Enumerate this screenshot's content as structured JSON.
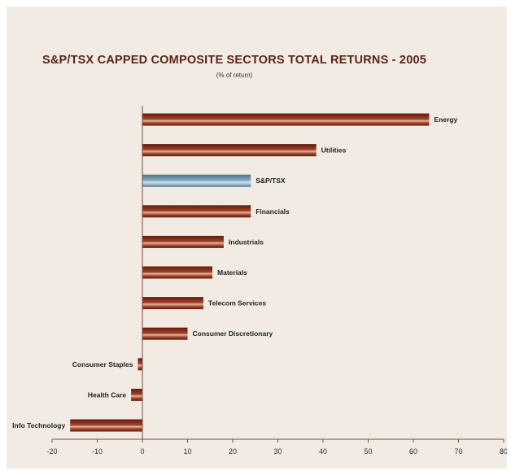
{
  "chart_data": {
    "type": "bar",
    "orientation": "horizontal",
    "title": "S&P/TSX CAPPED COMPOSITE SECTORS TOTAL RETURNS - 2005",
    "subtitle": "(% of return)",
    "xlabel": "",
    "ylabel": "",
    "xlim": [
      -20,
      80
    ],
    "xticks": [
      -20,
      -10,
      0,
      10,
      20,
      30,
      40,
      50,
      60,
      70,
      80
    ],
    "grid": false,
    "legend": "none",
    "categories": [
      "Energy",
      "Utilities",
      "S&P/TSX",
      "Financials",
      "Industrials",
      "Materials",
      "Telecom Services",
      "Consumer Discretionary",
      "Consumer Staples",
      "Health Care",
      "Info Technology"
    ],
    "values": [
      63.5,
      38.5,
      24,
      24,
      18,
      15.5,
      13.5,
      10,
      -1,
      -2.5,
      -16
    ],
    "highlight": "S&P/TSX",
    "colors": {
      "bar_dark": "#5e1c0d",
      "bar_mid": "#a4432a",
      "bar_light": "#e6bca8",
      "highlight_dark": "#4b7088",
      "highlight_light": "#d3e2ec",
      "axis": "#7a4a3a",
      "title": "#5a2418",
      "background": "#f1ebe4"
    }
  }
}
